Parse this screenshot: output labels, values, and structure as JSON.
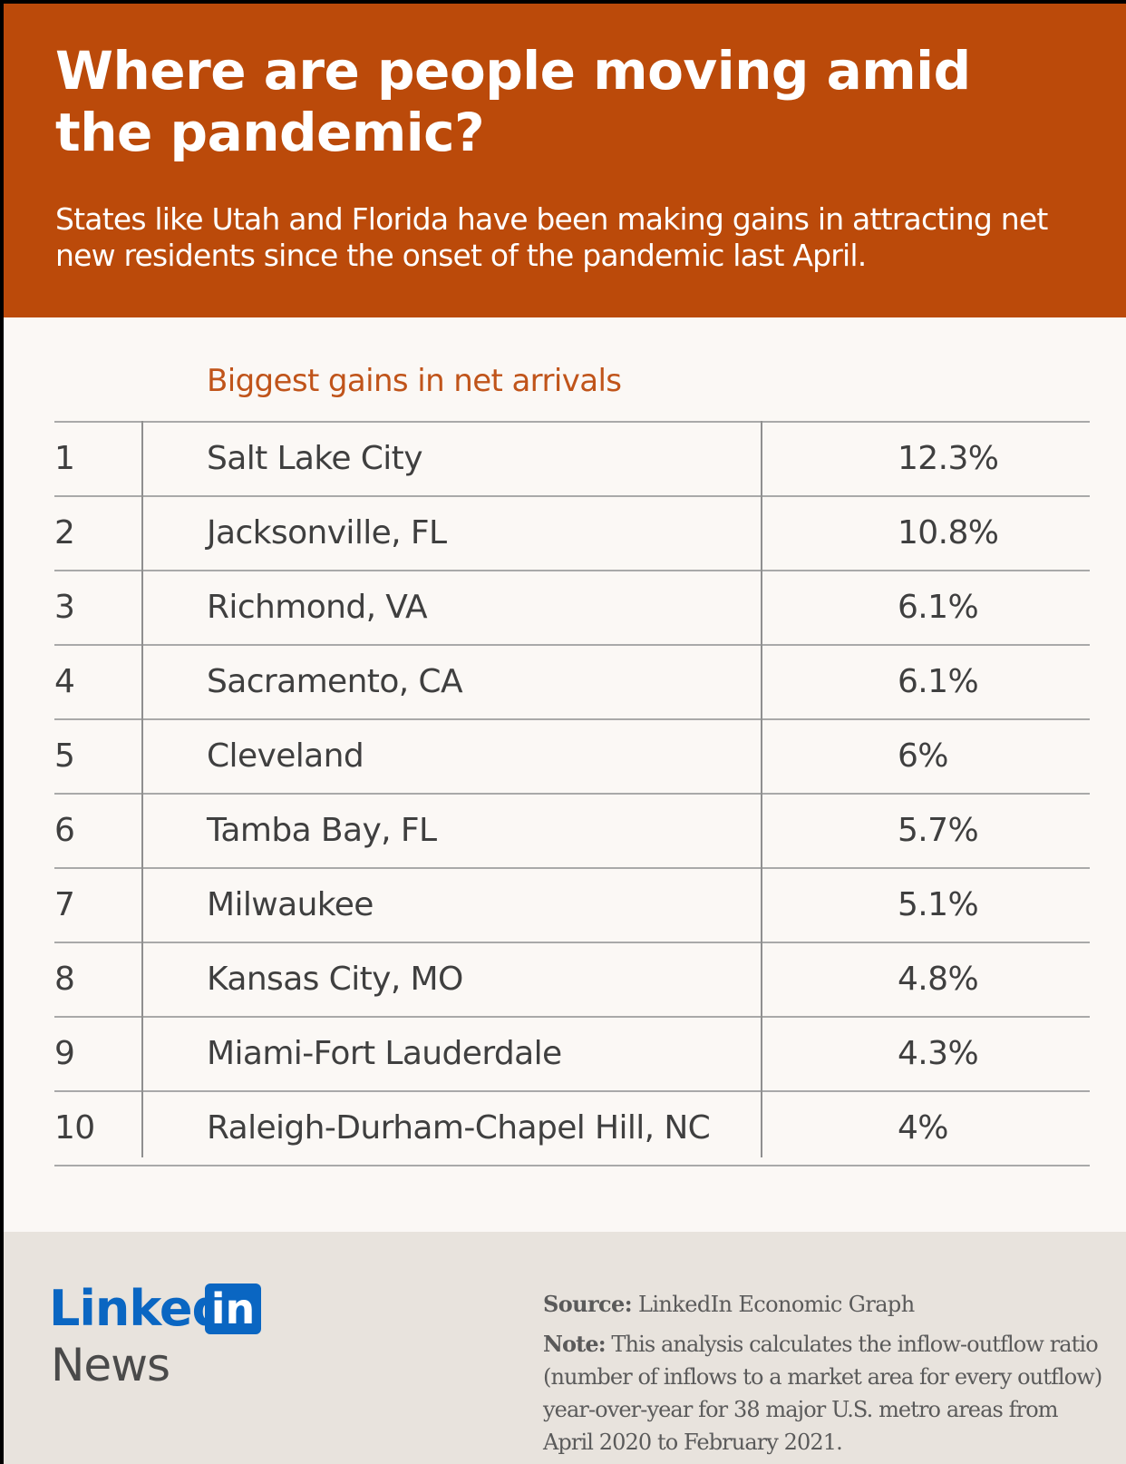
{
  "header": {
    "title": "Where are people moving amid the pandemic?",
    "subtitle": "States like Utah and Florida have been making gains in attracting net new residents since the onset of the pandemic last April."
  },
  "table_title": "Biggest gains in net arrivals",
  "chart_data": {
    "type": "table",
    "title": "Biggest gains in net arrivals",
    "rows": [
      {
        "rank": "1",
        "city": "Salt Lake City",
        "value": "12.3%"
      },
      {
        "rank": "2",
        "city": "Jacksonville, FL",
        "value": "10.8%"
      },
      {
        "rank": "3",
        "city": "Richmond, VA",
        "value": "6.1%"
      },
      {
        "rank": "4",
        "city": "Sacramento, CA",
        "value": "6.1%"
      },
      {
        "rank": "5",
        "city": "Cleveland",
        "value": "6%"
      },
      {
        "rank": "6",
        "city": "Tamba Bay, FL",
        "value": "5.7%"
      },
      {
        "rank": "7",
        "city": "Milwaukee",
        "value": "5.1%"
      },
      {
        "rank": "8",
        "city": "Kansas City, MO",
        "value": "4.8%"
      },
      {
        "rank": "9",
        "city": "Miami-Fort Lauderdale",
        "value": "4.3%"
      },
      {
        "rank": "10",
        "city": "Raleigh-Durham-Chapel Hill, NC",
        "value": "4%"
      }
    ]
  },
  "footer": {
    "logo_word": "Linked",
    "logo_box": "in",
    "logo_news": "News",
    "source_label": "Source:",
    "source_text": "LinkedIn Economic Graph",
    "note_label": "Note:",
    "note_text": "This analysis calculates the inflow-outflow ratio (number of inflows to a market area for every outflow) year-over-year for 38 major U.S. metro areas from April 2020 to February 2021."
  },
  "colors": {
    "header_bg": "#bb4a0a",
    "accent_text": "#c0541a",
    "linkedin_blue": "#0a66c2",
    "footer_bg": "#e8e3dd"
  }
}
